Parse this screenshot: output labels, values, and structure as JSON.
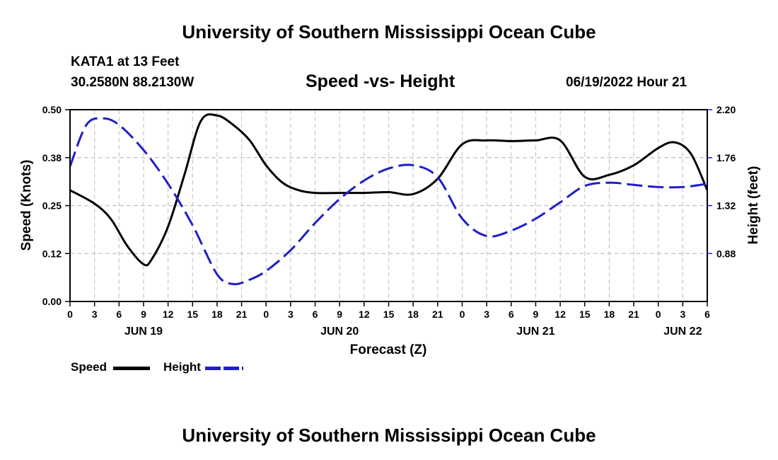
{
  "header": {
    "title": "University of Southern Mississippi Ocean Cube",
    "station": "KATA1 at 13 Feet",
    "coords": "30.2580N  88.2130W",
    "chart_title": "Speed -vs- Height",
    "datetime": "06/19/2022 Hour 21"
  },
  "footer": {
    "title": "University of Southern Mississippi Ocean Cube"
  },
  "legend": {
    "speed_label": "Speed",
    "height_label": "Height"
  },
  "colors": {
    "speed": "#000000",
    "height": "#1f1fc8",
    "grid": "#c8c8c8"
  },
  "chart_data": {
    "type": "line",
    "title": "Speed -vs- Height",
    "xlabel": "Forecast (Z)",
    "ylabel": "Speed (Knots)",
    "y2label": "Height (feet)",
    "xlim": [
      0,
      78
    ],
    "ylim": [
      0,
      0.5
    ],
    "y2lim": [
      0.44,
      2.2
    ],
    "x_ticks": [
      0,
      3,
      6,
      9,
      12,
      15,
      18,
      21,
      24,
      27,
      30,
      33,
      36,
      39,
      42,
      45,
      48,
      51,
      54,
      57,
      60,
      63,
      66,
      69,
      72,
      75,
      78
    ],
    "x_tick_labels": [
      "0",
      "3",
      "6",
      "9",
      "12",
      "15",
      "18",
      "21",
      "0",
      "3",
      "6",
      "9",
      "12",
      "15",
      "18",
      "21",
      "0",
      "3",
      "6",
      "9",
      "12",
      "15",
      "18",
      "21",
      "0",
      "3",
      "6"
    ],
    "date_labels": [
      {
        "x": 9,
        "label": "JUN 19"
      },
      {
        "x": 33,
        "label": "JUN 20"
      },
      {
        "x": 57,
        "label": "JUN 21"
      },
      {
        "x": 75,
        "label": "JUN 22"
      }
    ],
    "y_ticks": [
      0.0,
      0.125,
      0.25,
      0.375,
      0.5
    ],
    "y_tick_labels": [
      "0.00",
      "0.12",
      "0.25",
      "0.38",
      "0.50"
    ],
    "y2_ticks": [
      0.88,
      1.32,
      1.76,
      2.2
    ],
    "y2_tick_labels": [
      "0.88",
      "1.32",
      "1.76",
      "2.20"
    ],
    "series": [
      {
        "name": "Speed",
        "axis": "left",
        "x": [
          0,
          3,
          5,
          7,
          9,
          10,
          12,
          14,
          16,
          18,
          20,
          22,
          24,
          26,
          28,
          30,
          33,
          36,
          39,
          42,
          45,
          48,
          51,
          54,
          57,
          60,
          63,
          66,
          69,
          72,
          74,
          76,
          78
        ],
        "values": [
          0.29,
          0.255,
          0.215,
          0.145,
          0.097,
          0.11,
          0.195,
          0.33,
          0.47,
          0.485,
          0.46,
          0.42,
          0.355,
          0.31,
          0.29,
          0.283,
          0.283,
          0.283,
          0.285,
          0.28,
          0.32,
          0.41,
          0.42,
          0.418,
          0.42,
          0.42,
          0.325,
          0.33,
          0.355,
          0.4,
          0.415,
          0.385,
          0.29
        ]
      },
      {
        "name": "Height",
        "axis": "right",
        "x": [
          0,
          2,
          4,
          6,
          9,
          12,
          15,
          18,
          20,
          22,
          24,
          27,
          30,
          33,
          36,
          39,
          42,
          45,
          48,
          51,
          54,
          57,
          60,
          63,
          66,
          69,
          72,
          75,
          78
        ],
        "values": [
          1.68,
          2.06,
          2.12,
          2.06,
          1.83,
          1.52,
          1.14,
          0.69,
          0.6,
          0.64,
          0.72,
          0.91,
          1.16,
          1.38,
          1.55,
          1.66,
          1.69,
          1.58,
          1.2,
          1.04,
          1.09,
          1.2,
          1.35,
          1.5,
          1.53,
          1.51,
          1.49,
          1.49,
          1.52
        ]
      }
    ]
  }
}
